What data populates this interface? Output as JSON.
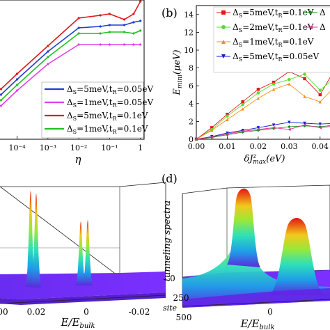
{
  "figure": {
    "panels": {
      "a": {
        "label": "",
        "xlabel": "η",
        "xticks": [
          "10⁻⁴",
          "10⁻³",
          "10⁻²",
          "10⁻¹",
          "1"
        ],
        "legend": [
          {
            "delta": "5meV",
            "t": "0.05eV",
            "color": "#1f3fd0"
          },
          {
            "delta": "1meV",
            "t": "0.05eV",
            "color": "#e040e8"
          },
          {
            "delta": "5meV",
            "t": "0.1eV",
            "color": "#e01818"
          },
          {
            "delta": "1meV",
            "t": "0.1eV",
            "color": "#22c022"
          }
        ]
      },
      "b": {
        "label": "(b)",
        "ylabel": "E_mini(μeV)",
        "xlabel": "δJ_max^z(eV)",
        "yticks": [
          "0",
          "2",
          "4",
          "6",
          "8",
          "10",
          "12",
          "14"
        ],
        "xticks": [
          "0.00",
          "0.01",
          "0.02",
          "0.03",
          "0.04"
        ],
        "legend": [
          {
            "delta": "5meV",
            "t": "0.1eV",
            "color": "#e01818",
            "marker": "square"
          },
          {
            "delta": "2meV",
            "t": "0.1eV",
            "color": "#55dd33",
            "marker": "circle"
          },
          {
            "delta": "1meV",
            "t": "0.1eV",
            "color": "#ff8c1a",
            "marker": "triangle-up"
          },
          {
            "delta": "5meV",
            "t": "0.05eV",
            "color": "#1a1ad6",
            "marker": "triangle-down"
          }
        ],
        "legend_partial": [
          {
            "delta": "",
            "color": "#1a8a1a",
            "marker": "diamond"
          },
          {
            "delta": "",
            "color": "#e0308a",
            "marker": "triangle-left"
          }
        ]
      },
      "c": {
        "label": "",
        "xlabel": "E/E_bulk",
        "xticks": [
          "00",
          "0.02",
          "0",
          "-0.02"
        ]
      },
      "d": {
        "label": "(d)",
        "zlabel": "tunneling spectra",
        "zticks": [
          "0"
        ],
        "site_label": "site",
        "site_ticks": [
          "250",
          "500"
        ],
        "xlabel": "E/E_bulk",
        "xticks": [
          "0"
        ]
      }
    }
  },
  "chart_data": [
    {
      "type": "line",
      "panel": "a",
      "xscale": "log",
      "xlabel": "η",
      "x": [
        3e-05,
        0.0001,
        0.001,
        0.01,
        0.05,
        0.1,
        0.3,
        0.6,
        1
      ],
      "series": [
        {
          "name": "Δ_S=5meV,t_R=0.1eV",
          "values": [
            0.36,
            0.47,
            0.67,
            0.87,
            0.89,
            0.9,
            0.86,
            0.9,
            0.99
          ]
        },
        {
          "name": "Δ_S=5meV,t_R=0.05eV",
          "values": [
            0.32,
            0.43,
            0.63,
            0.8,
            0.81,
            0.82,
            0.82,
            0.84,
            0.85
          ]
        },
        {
          "name": "Δ_S=1meV,t_R=0.1eV",
          "values": [
            0.28,
            0.39,
            0.59,
            0.76,
            0.76,
            0.77,
            0.77,
            0.76,
            0.78
          ]
        },
        {
          "name": "Δ_S=1meV,t_R=0.05eV",
          "values": [
            0.24,
            0.35,
            0.54,
            0.68,
            0.68,
            0.68,
            0.68,
            0.68,
            0.68
          ]
        }
      ]
    },
    {
      "type": "line",
      "panel": "b",
      "xlabel": "δJ_max^z(eV)",
      "ylabel": "E_mini(μeV)",
      "xlim": [
        0,
        0.045
      ],
      "ylim": [
        0,
        15
      ],
      "x": [
        0.0,
        0.005,
        0.01,
        0.015,
        0.02,
        0.025,
        0.03,
        0.035,
        0.04,
        0.045
      ],
      "series": [
        {
          "name": "Δ_S=5meV,t_R=0.1eV",
          "values": [
            0.0,
            1.3,
            2.8,
            4.2,
            5.6,
            6.4,
            7.6,
            6.8,
            5.0,
            8.0
          ]
        },
        {
          "name": "Δ_S=2meV,t_R=0.1eV",
          "values": [
            0.0,
            1.1,
            2.6,
            3.9,
            5.2,
            6.2,
            6.7,
            7.3,
            5.5,
            7.0
          ]
        },
        {
          "name": "Δ_S=1meV,t_R=0.1eV",
          "values": [
            0.0,
            1.0,
            2.2,
            3.4,
            4.6,
            5.6,
            6.2,
            4.8,
            4.2,
            6.0
          ]
        },
        {
          "name": "Δ_S=5meV,t_R=0.05eV",
          "values": [
            0.0,
            0.3,
            0.7,
            1.0,
            1.3,
            1.6,
            1.9,
            1.8,
            1.7,
            1.8
          ]
        },
        {
          "name": "",
          "values": [
            0.0,
            0.2,
            0.5,
            0.8,
            1.0,
            1.2,
            1.4,
            1.5,
            1.4,
            1.6
          ]
        },
        {
          "name": "",
          "values": [
            0.0,
            0.25,
            0.6,
            0.9,
            1.1,
            1.3,
            1.1,
            1.6,
            1.3,
            1.5
          ]
        }
      ]
    }
  ]
}
